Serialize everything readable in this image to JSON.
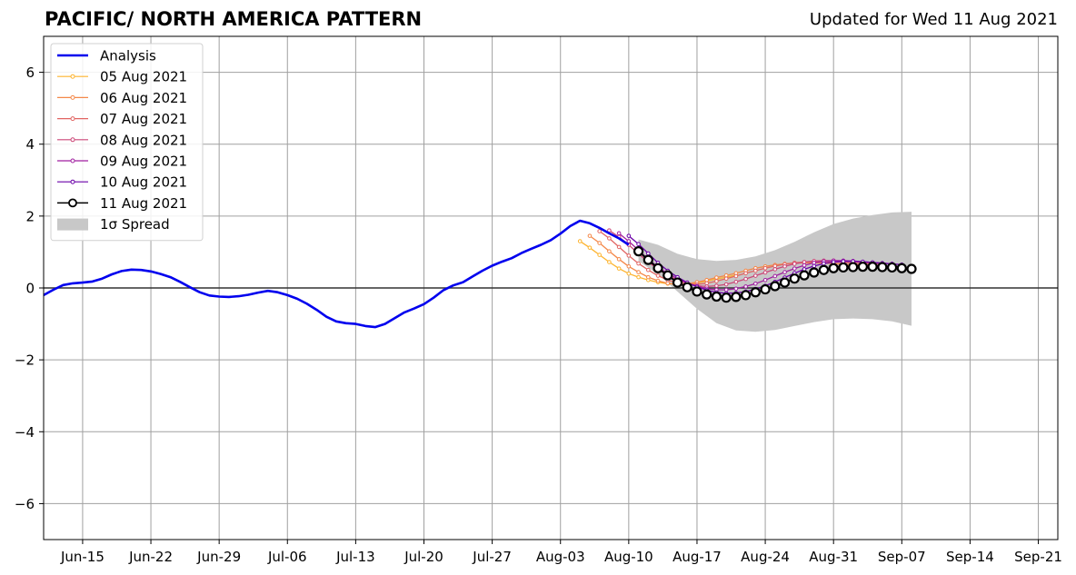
{
  "chart_data": {
    "type": "line",
    "title": "PACIFIC/ NORTH AMERICA PATTERN",
    "subtitle": "Updated for Wed 11 Aug 2021",
    "year": 2021,
    "x_range": [
      "2021-06-11",
      "2021-09-23"
    ],
    "ylim": [
      -7,
      7
    ],
    "y_ticks": [
      -6,
      -4,
      -2,
      0,
      2,
      4,
      6
    ],
    "y_tick_labels": [
      "−6",
      "−4",
      "−2",
      "0",
      "2",
      "4",
      "6"
    ],
    "x_ticks": [
      "2021-06-15",
      "2021-06-22",
      "2021-06-29",
      "2021-07-06",
      "2021-07-13",
      "2021-07-20",
      "2021-07-27",
      "2021-08-03",
      "2021-08-10",
      "2021-08-17",
      "2021-08-24",
      "2021-08-31",
      "2021-09-07",
      "2021-09-14",
      "2021-09-21"
    ],
    "x_tick_labels": [
      "Jun-15",
      "Jun-22",
      "Jun-29",
      "Jul-06",
      "Jul-13",
      "Jul-20",
      "Jul-27",
      "Aug-03",
      "Aug-10",
      "Aug-17",
      "Aug-24",
      "Aug-31",
      "Sep-07",
      "Sep-14",
      "Sep-21"
    ],
    "grid": true,
    "legend_position": "upper-left",
    "analysis": {
      "name": "Analysis",
      "color": "#0000ee",
      "x": [
        "2021-06-11",
        "2021-06-12",
        "2021-06-13",
        "2021-06-14",
        "2021-06-15",
        "2021-06-16",
        "2021-06-17",
        "2021-06-18",
        "2021-06-19",
        "2021-06-20",
        "2021-06-21",
        "2021-06-22",
        "2021-06-23",
        "2021-06-24",
        "2021-06-25",
        "2021-06-26",
        "2021-06-27",
        "2021-06-28",
        "2021-06-29",
        "2021-06-30",
        "2021-07-01",
        "2021-07-02",
        "2021-07-03",
        "2021-07-04",
        "2021-07-05",
        "2021-07-06",
        "2021-07-07",
        "2021-07-08",
        "2021-07-09",
        "2021-07-10",
        "2021-07-11",
        "2021-07-12",
        "2021-07-13",
        "2021-07-14",
        "2021-07-15",
        "2021-07-16",
        "2021-07-17",
        "2021-07-18",
        "2021-07-19",
        "2021-07-20",
        "2021-07-21",
        "2021-07-22",
        "2021-07-23",
        "2021-07-24",
        "2021-07-25",
        "2021-07-26",
        "2021-07-27",
        "2021-07-28",
        "2021-07-29",
        "2021-07-30",
        "2021-07-31",
        "2021-08-01",
        "2021-08-02",
        "2021-08-03",
        "2021-08-04",
        "2021-08-05",
        "2021-08-06",
        "2021-08-07",
        "2021-08-08",
        "2021-08-09",
        "2021-08-10"
      ],
      "y": [
        -0.2,
        -0.05,
        0.08,
        0.13,
        0.15,
        0.18,
        0.26,
        0.38,
        0.47,
        0.51,
        0.5,
        0.46,
        0.39,
        0.3,
        0.17,
        0.02,
        -0.12,
        -0.21,
        -0.24,
        -0.25,
        -0.23,
        -0.19,
        -0.13,
        -0.08,
        -0.12,
        -0.2,
        -0.3,
        -0.44,
        -0.61,
        -0.8,
        -0.93,
        -0.98,
        -1.0,
        -1.06,
        -1.09,
        -1.0,
        -0.84,
        -0.68,
        -0.57,
        -0.45,
        -0.27,
        -0.06,
        0.07,
        0.16,
        0.32,
        0.48,
        0.62,
        0.73,
        0.83,
        0.97,
        1.09,
        1.2,
        1.33,
        1.51,
        1.72,
        1.87,
        1.8,
        1.67,
        1.52,
        1.38,
        1.2
      ]
    },
    "forecasts": [
      {
        "name": "05 Aug 2021",
        "color": "#fdb42f",
        "start": "2021-08-05",
        "y": [
          1.3,
          1.12,
          0.92,
          0.72,
          0.54,
          0.4,
          0.3,
          0.22,
          0.16,
          0.12,
          0.1,
          0.11,
          0.14,
          0.19,
          0.25,
          0.3,
          0.36
        ]
      },
      {
        "name": "06 Aug 2021",
        "color": "#f48849",
        "start": "2021-08-06",
        "y": [
          1.45,
          1.25,
          1.02,
          0.8,
          0.6,
          0.44,
          0.3,
          0.2,
          0.13,
          0.1,
          0.12,
          0.16,
          0.22,
          0.29,
          0.35,
          0.41,
          0.48,
          0.55,
          0.6,
          0.64,
          0.67,
          0.69,
          0.7,
          0.7,
          0.69,
          0.68,
          0.66,
          0.64,
          0.63
        ]
      },
      {
        "name": "07 Aug 2021",
        "color": "#e16462",
        "start": "2021-08-07",
        "y": [
          1.58,
          1.38,
          1.14,
          0.9,
          0.68,
          0.5,
          0.34,
          0.22,
          0.14,
          0.1,
          0.1,
          0.13,
          0.19,
          0.26,
          0.33,
          0.41,
          0.48,
          0.55,
          0.61,
          0.66,
          0.7,
          0.72,
          0.73,
          0.73,
          0.72,
          0.71,
          0.69,
          0.67,
          0.65
        ]
      },
      {
        "name": "08 Aug 2021",
        "color": "#cc4778",
        "start": "2021-08-08",
        "y": [
          1.6,
          1.42,
          1.2,
          0.95,
          0.72,
          0.52,
          0.35,
          0.22,
          0.12,
          0.06,
          0.04,
          0.06,
          0.1,
          0.17,
          0.25,
          0.34,
          0.43,
          0.52,
          0.6,
          0.67,
          0.72,
          0.75,
          0.76,
          0.76,
          0.75,
          0.73,
          0.71,
          0.68,
          0.65
        ]
      },
      {
        "name": "09 Aug 2021",
        "color": "#a01fa0",
        "start": "2021-08-09",
        "y": [
          1.52,
          1.3,
          1.05,
          0.8,
          0.58,
          0.4,
          0.26,
          0.14,
          0.05,
          -0.02,
          -0.05,
          -0.05,
          -0.02,
          0.04,
          0.12,
          0.22,
          0.33,
          0.44,
          0.54,
          0.63,
          0.7,
          0.74,
          0.76,
          0.76,
          0.75,
          0.73,
          0.71,
          0.69,
          0.67
        ]
      },
      {
        "name": "10 Aug 2021",
        "color": "#6a00a8",
        "start": "2021-08-10",
        "y": [
          1.45,
          1.22,
          0.96,
          0.7,
          0.48,
          0.3,
          0.15,
          0.03,
          -0.06,
          -0.12,
          -0.15,
          -0.14,
          -0.1,
          -0.03,
          0.06,
          0.17,
          0.29,
          0.41,
          0.52,
          0.61,
          0.68,
          0.72,
          0.74,
          0.74,
          0.73,
          0.71,
          0.69,
          0.67,
          0.65
        ]
      },
      {
        "name": "11 Aug 2021",
        "color": "#000000",
        "start": "2021-08-11",
        "y": [
          1.02,
          0.78,
          0.55,
          0.35,
          0.15,
          0.02,
          -0.1,
          -0.18,
          -0.24,
          -0.27,
          -0.25,
          -0.2,
          -0.12,
          -0.04,
          0.05,
          0.15,
          0.26,
          0.35,
          0.43,
          0.5,
          0.55,
          0.57,
          0.58,
          0.59,
          0.59,
          0.58,
          0.57,
          0.55,
          0.53
        ]
      }
    ],
    "spread": {
      "name": "1σ Spread",
      "color": "#c8c8c8",
      "x": [
        "2021-08-11",
        "2021-08-13",
        "2021-08-15",
        "2021-08-17",
        "2021-08-19",
        "2021-08-21",
        "2021-08-23",
        "2021-08-25",
        "2021-08-27",
        "2021-08-29",
        "2021-08-31",
        "2021-09-02",
        "2021-09-04",
        "2021-09-06",
        "2021-09-08"
      ],
      "upper": [
        1.35,
        1.2,
        0.95,
        0.8,
        0.75,
        0.78,
        0.88,
        1.05,
        1.28,
        1.55,
        1.78,
        1.93,
        2.03,
        2.1,
        2.12
      ],
      "lower": [
        0.75,
        0.38,
        -0.1,
        -0.58,
        -0.98,
        -1.18,
        -1.22,
        -1.17,
        -1.06,
        -0.95,
        -0.87,
        -0.85,
        -0.87,
        -0.93,
        -1.05
      ]
    }
  }
}
